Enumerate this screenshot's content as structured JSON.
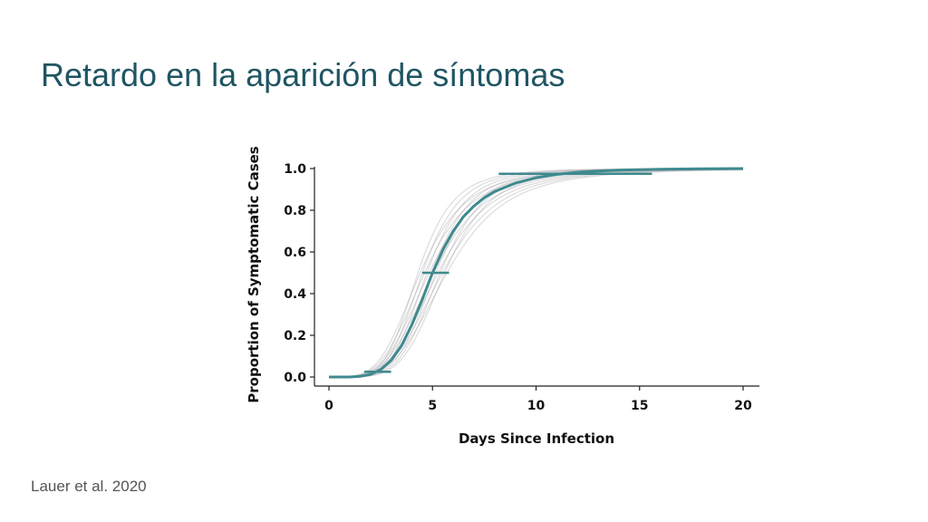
{
  "slide": {
    "title": "Retardo en la aparición de síntomas",
    "citation": "Lauer et al. 2020"
  },
  "colors": {
    "title": "#1f5563",
    "main_curve": "#3e8a8e",
    "bootstrap_curves": "#9a9aa4"
  },
  "chart_data": {
    "type": "line",
    "title": "",
    "xlabel": "Days Since Infection",
    "ylabel": "Proportion of Symptomatic Cases",
    "xlim": [
      0,
      20
    ],
    "ylim": [
      0,
      1.0
    ],
    "x_ticks": [
      0,
      5,
      10,
      15,
      20
    ],
    "x_tick_labels": [
      "0",
      "5",
      "10",
      "15",
      "20"
    ],
    "y_ticks": [
      0.0,
      0.2,
      0.4,
      0.6,
      0.8,
      1.0
    ],
    "y_tick_labels": [
      "0.0",
      "0.2",
      "0.4",
      "0.6",
      "0.8",
      "1.0"
    ],
    "grid": false,
    "series": [
      {
        "x": [
          0,
          1,
          1.5,
          2,
          2.5,
          3,
          3.5,
          4,
          4.5,
          5,
          5.5,
          6,
          6.5,
          7,
          7.5,
          8,
          9,
          10,
          11,
          12,
          13,
          14,
          15,
          16,
          18,
          20
        ],
        "values": [
          0.0,
          0.0,
          0.003,
          0.012,
          0.035,
          0.08,
          0.15,
          0.25,
          0.37,
          0.5,
          0.61,
          0.7,
          0.77,
          0.82,
          0.86,
          0.89,
          0.93,
          0.956,
          0.972,
          0.982,
          0.988,
          0.992,
          0.995,
          0.997,
          0.999,
          1.0
        ]
      }
    ],
    "bootstrap_curves": {
      "count": 14,
      "median_shift_range": [
        -0.7,
        0.7
      ],
      "steepness_range": [
        0.8,
        1.2
      ]
    },
    "percentile_intervals": [
      {
        "percentile": 0.025,
        "y": 0.025,
        "x_low": 1.7,
        "x_high": 3.0
      },
      {
        "percentile": 0.5,
        "y": 0.5,
        "x_low": 4.5,
        "x_high": 5.8
      },
      {
        "percentile": 0.975,
        "y": 0.975,
        "x_low": 8.2,
        "x_high": 15.6
      }
    ]
  }
}
